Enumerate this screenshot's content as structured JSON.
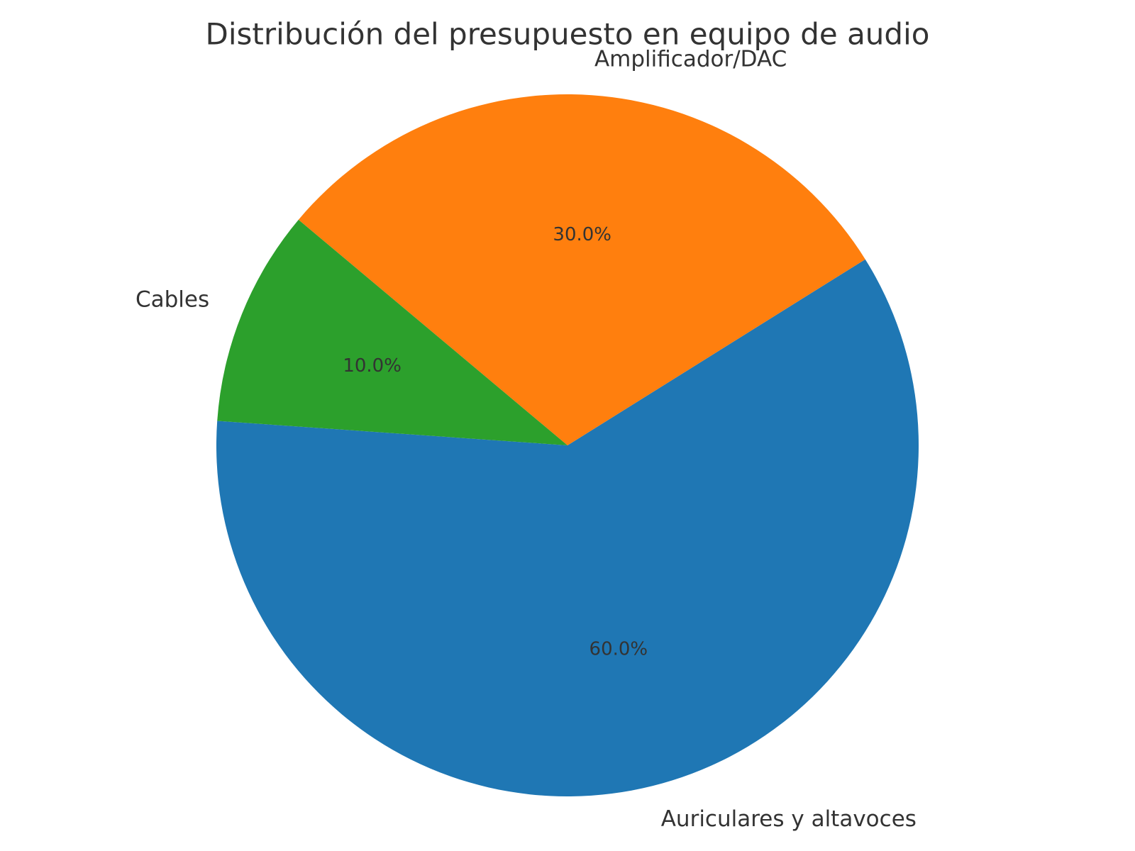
{
  "chart_data": {
    "type": "pie",
    "title": "Distribución del presupuesto en equipo de audio",
    "start_angle_deg": 176,
    "direction": "counterclockwise",
    "legend": "none",
    "slices": [
      {
        "label": "Auriculares y altavoces",
        "value": 60.0,
        "pct_label": "60.0%",
        "color": "#1f77b4"
      },
      {
        "label": "Amplificador/DAC",
        "value": 30.0,
        "pct_label": "30.0%",
        "color": "#ff7f0e"
      },
      {
        "label": "Cables",
        "value": 10.0,
        "pct_label": "10.0%",
        "color": "#2ca02c"
      }
    ]
  }
}
